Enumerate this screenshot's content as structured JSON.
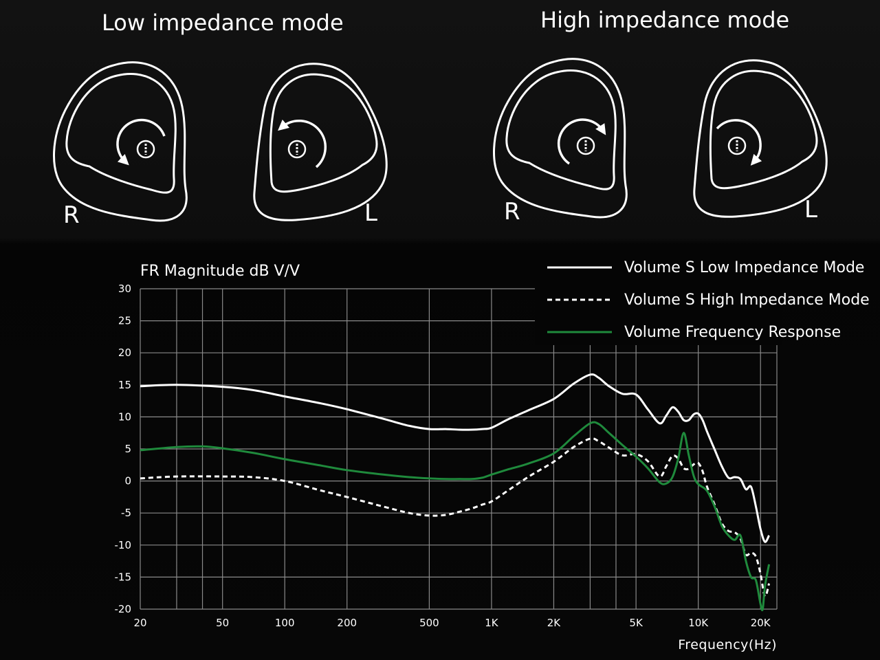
{
  "header": {
    "low_title": "Low impedance mode",
    "high_title": "High impedance mode",
    "right_label": "R",
    "left_label": "L"
  },
  "colors": {
    "low_series": "#ffffff",
    "high_series": "#ffffff",
    "volume_series": "#1f8a3c",
    "grid": "#8a8a8a",
    "background": "#050505"
  },
  "icons": {
    "ear_right_low": "earpiece-right-counterclockwise-icon",
    "ear_left_low": "earpiece-left-counterclockwise-icon",
    "ear_right_high": "earpiece-right-clockwise-icon",
    "ear_left_high": "earpiece-left-clockwise-icon"
  },
  "chart_data": {
    "type": "line",
    "ylabel": "FR Magnitude dB V/V",
    "xlabel": "Frequency(Hz)",
    "x_scale": "log",
    "xlim": [
      20,
      24000
    ],
    "ylim": [
      -20,
      30
    ],
    "grid": true,
    "legend_position": "top-right",
    "y_ticks": [
      30,
      25,
      20,
      15,
      10,
      5,
      0,
      -5,
      -10,
      -15,
      -20
    ],
    "y_tick_labels": [
      "30",
      "25",
      "20",
      "15",
      "10",
      "5",
      "0",
      "-5",
      "-10",
      "-15",
      "-20"
    ],
    "x_ticks": [
      20,
      50,
      100,
      200,
      500,
      1000,
      2000,
      5000,
      10000,
      20000
    ],
    "x_tick_labels": [
      "20",
      "50",
      "100",
      "200",
      "500",
      "1K",
      "2K",
      "5K",
      "10K",
      "20K"
    ],
    "x_minor_gridlines": [
      30,
      40,
      3000,
      4000
    ],
    "series": [
      {
        "name": "Volume S Low Impedance Mode",
        "style": "solid",
        "x": [
          20,
          30,
          50,
          70,
          100,
          150,
          200,
          300,
          400,
          500,
          600,
          700,
          800,
          900,
          1000,
          1200,
          1500,
          2000,
          2500,
          3000,
          3300,
          3700,
          4300,
          5000,
          5700,
          6500,
          7000,
          7500,
          8000,
          8500,
          9000,
          9500,
          10000,
          10500,
          11000,
          12000,
          13000,
          14000,
          15000,
          16000,
          17000,
          18000,
          19000,
          20000,
          21000,
          22000
        ],
        "y": [
          14.8,
          15.0,
          14.7,
          14.2,
          13.2,
          12.1,
          11.2,
          9.7,
          8.6,
          8.1,
          8.1,
          8.0,
          8.0,
          8.1,
          8.3,
          9.6,
          11.0,
          12.8,
          15.2,
          16.6,
          16.1,
          14.8,
          13.6,
          13.5,
          11.2,
          9.0,
          10.2,
          11.5,
          10.8,
          9.5,
          9.5,
          10.4,
          10.5,
          9.5,
          7.8,
          4.9,
          2.3,
          0.5,
          0.6,
          0.3,
          -1.3,
          -0.9,
          -4.0,
          -7.5,
          -9.5,
          -8.5
        ]
      },
      {
        "name": "Volume S High Impedance Mode",
        "style": "dashed",
        "x": [
          20,
          30,
          50,
          70,
          100,
          150,
          200,
          300,
          400,
          500,
          600,
          700,
          800,
          900,
          1000,
          1200,
          1500,
          2000,
          2500,
          3000,
          3300,
          3700,
          4300,
          5000,
          5700,
          6500,
          7000,
          7500,
          8000,
          8500,
          9000,
          9500,
          10000,
          10500,
          11000,
          12000,
          13000,
          14000,
          15000,
          16000,
          17000,
          18000,
          19000,
          20000,
          21000,
          22000
        ],
        "y": [
          0.4,
          0.7,
          0.7,
          0.6,
          0.0,
          -1.5,
          -2.5,
          -4.0,
          -5.0,
          -5.4,
          -5.3,
          -4.8,
          -4.3,
          -3.7,
          -3.2,
          -1.5,
          0.6,
          3.0,
          5.3,
          6.6,
          6.2,
          5.2,
          4.0,
          4.2,
          3.1,
          0.7,
          2.3,
          3.9,
          3.5,
          2.0,
          1.9,
          2.6,
          2.8,
          1.5,
          -0.8,
          -3.7,
          -6.6,
          -7.8,
          -8.0,
          -9.0,
          -11.5,
          -11.2,
          -11.8,
          -14.5,
          -18.0,
          -16.0
        ]
      },
      {
        "name": "Volume Frequency Response",
        "style": "solid",
        "x": [
          20,
          30,
          40,
          50,
          70,
          100,
          150,
          200,
          300,
          400,
          500,
          600,
          700,
          800,
          900,
          1000,
          1200,
          1500,
          2000,
          2500,
          3000,
          3300,
          3700,
          4300,
          5000,
          5700,
          6500,
          7000,
          7500,
          8000,
          8500,
          9000,
          9500,
          10000,
          11000,
          12000,
          13000,
          14000,
          15000,
          16000,
          17000,
          18000,
          19000,
          20000,
          20500,
          21000,
          22000
        ],
        "y": [
          4.8,
          5.3,
          5.4,
          5.1,
          4.4,
          3.4,
          2.4,
          1.7,
          1.0,
          0.6,
          0.4,
          0.3,
          0.3,
          0.3,
          0.5,
          1.0,
          1.8,
          2.7,
          4.3,
          7.0,
          9.0,
          8.9,
          7.5,
          5.6,
          3.8,
          2.0,
          -0.2,
          -0.4,
          0.6,
          3.5,
          7.5,
          4.0,
          0.8,
          -0.5,
          -1.5,
          -4.0,
          -7.0,
          -8.5,
          -9.2,
          -8.5,
          -12.5,
          -15.0,
          -15.5,
          -19.2,
          -20.0,
          -16.5,
          -13.0
        ]
      }
    ]
  }
}
